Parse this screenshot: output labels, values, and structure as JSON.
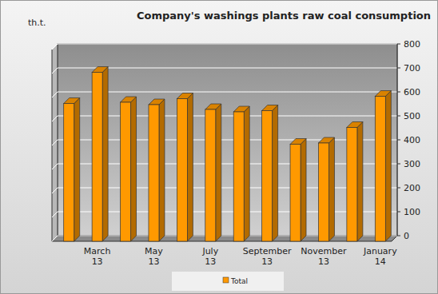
{
  "chart_data": {
    "type": "bar",
    "title": "Company's washings plants raw coal consumption",
    "y_label": "th.t.",
    "categories": [
      null,
      "March 13",
      null,
      "May 13",
      null,
      "July 13",
      null,
      "September 13",
      null,
      "November 13",
      null,
      "January 14"
    ],
    "series": [
      {
        "name": "Total",
        "color": "#ff9900",
        "values": [
          575,
          705,
          580,
          570,
          595,
          550,
          540,
          545,
          405,
          410,
          475,
          605
        ]
      }
    ],
    "ylim": [
      0,
      800
    ],
    "yticks": [
      0,
      100,
      200,
      300,
      400,
      500,
      600,
      700,
      800
    ],
    "grid": true,
    "legend": "bottom"
  }
}
